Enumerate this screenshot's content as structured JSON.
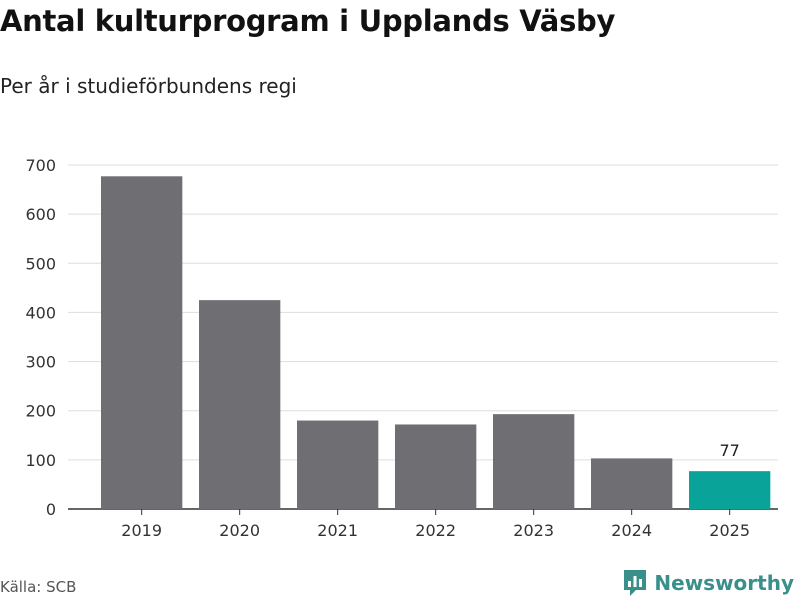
{
  "title": "Antal kulturprogram i Upplands Väsby",
  "subtitle": "Per år i studieförbundens regi",
  "source": "Källa: SCB",
  "brand": "Newsworthy",
  "colors": {
    "bar": "#6e6e73",
    "highlight": "#0aa39a",
    "grid": "#dddddd",
    "axis": "#333333",
    "brand": "#3a8f8a"
  },
  "chart_data": {
    "type": "bar",
    "categories": [
      "2019",
      "2020",
      "2021",
      "2022",
      "2023",
      "2024",
      "2025"
    ],
    "values": [
      677,
      425,
      180,
      172,
      193,
      103,
      77
    ],
    "highlight_index": 6,
    "data_labels": [
      {
        "index": 6,
        "text": "77"
      }
    ],
    "ylim": [
      0,
      700
    ],
    "yticks": [
      0,
      100,
      200,
      300,
      400,
      500,
      600,
      700
    ],
    "grid": true,
    "xlabel": "",
    "ylabel": ""
  }
}
